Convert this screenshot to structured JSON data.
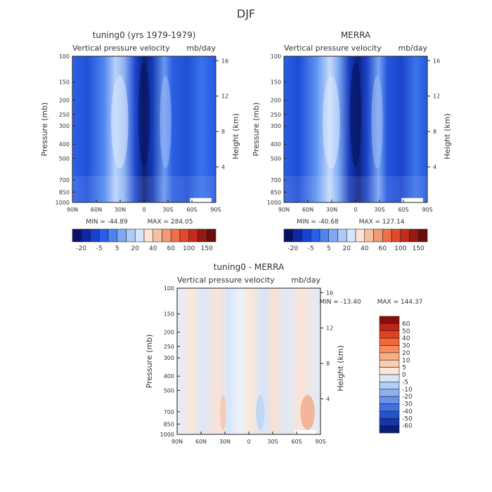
{
  "figure": {
    "title": "DJF"
  },
  "chart_data": [
    {
      "type": "heatmap",
      "title": "tuning0 (yrs 1979-1979)",
      "subtitle_left": "Vertical pressure velocity",
      "subtitle_right": "mb/day",
      "xlabel": "",
      "ylabel": "Pressure (mb)",
      "y2label": "Height (km)",
      "x_ticks": [
        "90N",
        "60N",
        "30N",
        "0",
        "30S",
        "60S",
        "90S"
      ],
      "x_range": [
        90,
        -90
      ],
      "y_ticks": [
        100,
        150,
        200,
        250,
        300,
        400,
        500,
        700,
        850,
        1000
      ],
      "y_range": [
        100,
        1000
      ],
      "y_scale": "log",
      "y2_ticks": [
        4,
        8,
        12,
        16
      ],
      "min_text": "MIN = -44.89",
      "max_text": "MAX = 284.05",
      "colorbar": {
        "orientation": "horizontal",
        "labels": [
          "-20",
          "-5",
          "5",
          "20",
          "40",
          "60",
          "100",
          "150"
        ],
        "colors": [
          "#08106b",
          "#0d27a6",
          "#1640d6",
          "#2a5ee8",
          "#4f84f0",
          "#7fa9f5",
          "#aecaf8",
          "#d6e6fb",
          "#fbe4d6",
          "#f8c0a3",
          "#f39a75",
          "#ee7049",
          "#e4482a",
          "#c52b1b",
          "#961a12",
          "#6b0d0a"
        ]
      }
    },
    {
      "type": "heatmap",
      "title": "MERRA",
      "subtitle_left": "Vertical pressure velocity",
      "subtitle_right": "mb/day",
      "xlabel": "",
      "ylabel": "Pressure (mb)",
      "y2label": "Height (km)",
      "x_ticks": [
        "90N",
        "60N",
        "30N",
        "0",
        "30S",
        "60S",
        "90S"
      ],
      "x_range": [
        90,
        -90
      ],
      "y_ticks": [
        100,
        150,
        200,
        250,
        300,
        400,
        500,
        700,
        850,
        1000
      ],
      "y_range": [
        100,
        1000
      ],
      "y_scale": "log",
      "y2_ticks": [
        4,
        8,
        12,
        16
      ],
      "min_text": "MIN = -40.68",
      "max_text": "MAX = 127.14",
      "colorbar": {
        "orientation": "horizontal",
        "labels": [
          "-20",
          "-5",
          "5",
          "20",
          "40",
          "60",
          "100",
          "150"
        ],
        "colors": [
          "#08106b",
          "#0d27a6",
          "#1640d6",
          "#2a5ee8",
          "#4f84f0",
          "#7fa9f5",
          "#aecaf8",
          "#d6e6fb",
          "#fbe4d6",
          "#f8c0a3",
          "#f39a75",
          "#ee7049",
          "#e4482a",
          "#c52b1b",
          "#961a12",
          "#6b0d0a"
        ]
      }
    },
    {
      "type": "heatmap",
      "title": "tuning0 - MERRA",
      "subtitle_left": "Vertical pressure velocity",
      "subtitle_right": "mb/day",
      "xlabel": "",
      "ylabel": "Pressure (mb)",
      "y2label": "Height (km)",
      "x_ticks": [
        "90N",
        "60N",
        "30N",
        "0",
        "30S",
        "60S",
        "90S"
      ],
      "x_range": [
        90,
        -90
      ],
      "y_ticks": [
        100,
        150,
        200,
        250,
        300,
        400,
        500,
        700,
        850,
        1000
      ],
      "y_range": [
        100,
        1000
      ],
      "y_scale": "log",
      "y2_ticks": [
        4,
        8,
        12,
        16
      ],
      "min_text": "MIN = -13.40",
      "max_text": "MAX = 144.37",
      "colorbar": {
        "orientation": "vertical",
        "labels": [
          "60",
          "50",
          "40",
          "30",
          "20",
          "10",
          "5",
          "0",
          "-5",
          "-10",
          "-20",
          "-30",
          "-40",
          "-50",
          "-60"
        ],
        "colors": [
          "#8b0d0b",
          "#bf2416",
          "#e2411f",
          "#f2663a",
          "#f78b5c",
          "#f9ad85",
          "#fbcdb0",
          "#fde6d6",
          "#d7e7fa",
          "#b1cdf6",
          "#8cb1f2",
          "#6892ec",
          "#4371e3",
          "#2552cf",
          "#1537a8",
          "#0b1f74"
        ]
      }
    }
  ]
}
